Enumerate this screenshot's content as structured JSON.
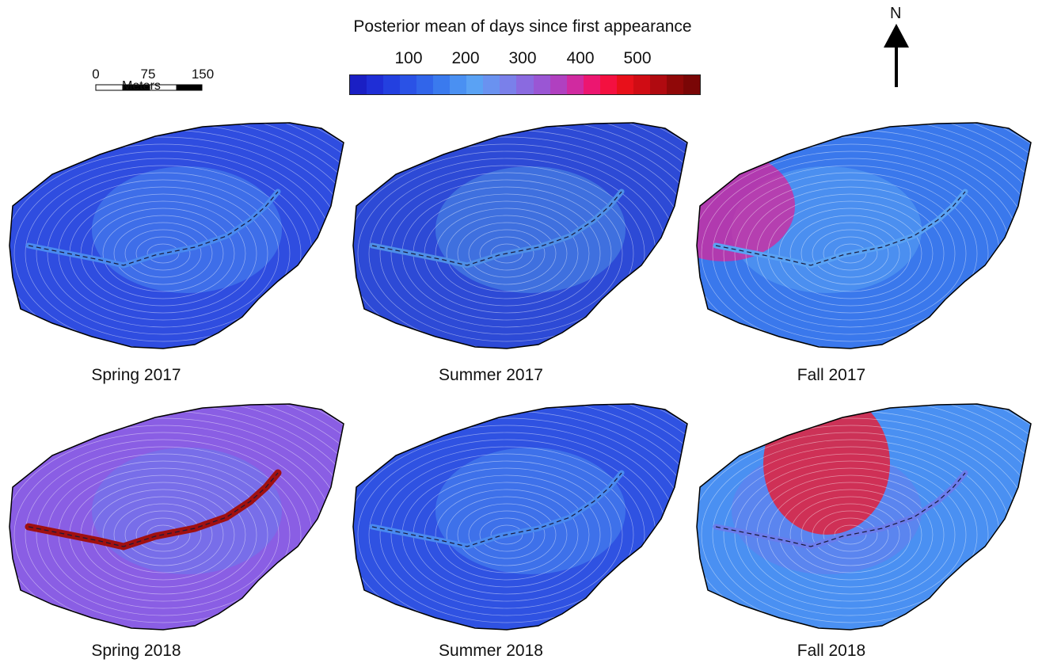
{
  "legend": {
    "title": "Posterior mean of days since first appearance",
    "ticks": [
      "100",
      "200",
      "300",
      "400",
      "500"
    ],
    "colors": [
      "#1a1fc4",
      "#1f2ed6",
      "#2340e0",
      "#2a52e6",
      "#3165ea",
      "#3a7aee",
      "#4a90f2",
      "#5aa2f4",
      "#6a92f0",
      "#7a80ea",
      "#8a6ae0",
      "#9a56d4",
      "#b040c0",
      "#d02aa0",
      "#ec1670",
      "#f41040",
      "#e8101a",
      "#d00c14",
      "#b00a10",
      "#900808",
      "#7a0606"
    ]
  },
  "scalebar": {
    "labels": [
      "0",
      "75",
      "150"
    ],
    "unit": "Meters"
  },
  "north_arrow": {
    "label": "N"
  },
  "panels": [
    {
      "caption": "Spring 2017",
      "base": "#2f4de0",
      "accent": "#4a8af0",
      "hot": "#9a56d4"
    },
    {
      "caption": "Summer 2017",
      "base": "#2d4ad6",
      "accent": "#4f8fe8",
      "hot": "#3a6ce6"
    },
    {
      "caption": "Fall 2017",
      "base": "#3a78ec",
      "accent": "#5aa2f4",
      "hot": "#d02aa0"
    },
    {
      "caption": "Spring 2018",
      "base": "#8a5ee4",
      "accent": "#6a7cec",
      "hot": "#a01010"
    },
    {
      "caption": "Summer 2018",
      "base": "#2f52e2",
      "accent": "#4a8af0",
      "hot": "#3a6ce6"
    },
    {
      "caption": "Fall 2018",
      "base": "#4a90f2",
      "accent": "#6a7cec",
      "hot": "#ec1a30"
    }
  ]
}
